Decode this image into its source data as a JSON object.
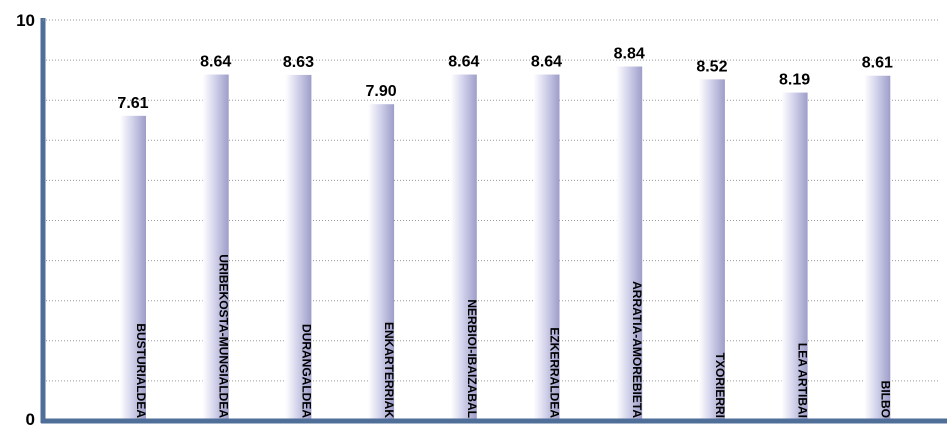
{
  "chart_data": {
    "type": "bar",
    "categories": [
      "BUSTURIALDEA",
      "URIBEKOSTA-MUNGIALDEA",
      "DURANGALDEA",
      "ENKARTERRIAK",
      "NERBIOI-IBAIZABAL",
      "EZKERRALDEA",
      "ARRATIA-AMOREBIETA",
      "TXORIERRI",
      "LEA ARTIBAI",
      "BILBO"
    ],
    "values": [
      7.61,
      8.64,
      8.63,
      7.9,
      8.64,
      8.64,
      8.84,
      8.52,
      8.19,
      8.61
    ],
    "value_labels": [
      "7.61",
      "8.64",
      "8.63",
      "7.90",
      "8.64",
      "8.64",
      "8.84",
      "8.52",
      "8.19",
      "8.61"
    ],
    "ylim": [
      0,
      10
    ],
    "y_ticks": [
      "0",
      "10"
    ],
    "grid": true,
    "colors": {
      "bar_light": "#ffffff",
      "bar_mid": "#d4d4ec",
      "bar_dark": "#9d9dc9",
      "axis": "#4f6e98",
      "grid": "#9a9a9a"
    }
  }
}
